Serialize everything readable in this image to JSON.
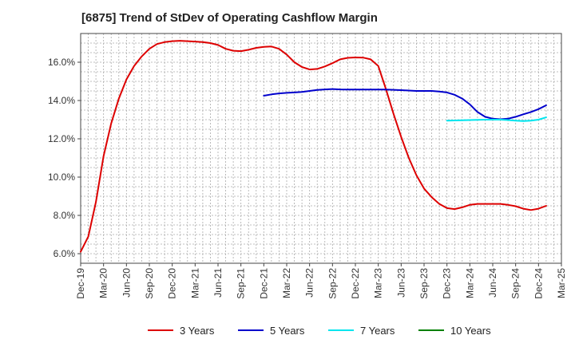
{
  "title": "[6875]  Trend of StDev of Operating Cashflow Margin",
  "chart_data": {
    "type": "line",
    "title": "[6875]  Trend of StDev of Operating Cashflow Margin",
    "xlabel": "",
    "ylabel": "",
    "x_tick_labels": [
      "Dec-19",
      "Mar-20",
      "Jun-20",
      "Sep-20",
      "Dec-20",
      "Mar-21",
      "Jun-21",
      "Sep-21",
      "Dec-21",
      "Mar-22",
      "Jun-22",
      "Sep-22",
      "Dec-22",
      "Mar-23",
      "Jun-23",
      "Sep-23",
      "Dec-23",
      "Mar-24",
      "Jun-24",
      "Sep-24",
      "Dec-24",
      "Mar-25"
    ],
    "y_tick_labels": [
      "6.0%",
      "8.0%",
      "10.0%",
      "12.0%",
      "14.0%",
      "16.0%"
    ],
    "y_ticks": [
      6,
      8,
      10,
      12,
      14,
      16
    ],
    "ylim": [
      5.5,
      17.5
    ],
    "x_range_months": [
      0,
      63
    ],
    "grid": true,
    "legend_position": "bottom",
    "series": [
      {
        "name": "3 Years",
        "color": "#dd0000",
        "x_months": [
          0,
          1,
          2,
          3,
          4,
          5,
          6,
          7,
          8,
          9,
          10,
          11,
          12,
          13,
          14,
          15,
          16,
          17,
          18,
          19,
          20,
          21,
          22,
          23,
          24,
          25,
          26,
          27,
          28,
          29,
          30,
          31,
          32,
          33,
          34,
          35,
          36,
          37,
          38,
          39,
          40,
          41,
          42,
          43,
          44,
          45,
          46,
          47,
          48,
          49,
          50,
          51,
          52,
          53,
          54,
          55,
          56,
          57,
          58,
          59,
          60,
          61,
          62,
          63
        ],
        "values": [
          6.1,
          6.9,
          8.7,
          11.1,
          12.8,
          14.1,
          15.1,
          15.8,
          16.3,
          16.7,
          16.95,
          17.05,
          17.1,
          17.12,
          17.1,
          17.08,
          17.05,
          17.0,
          16.9,
          16.7,
          16.6,
          16.58,
          16.65,
          16.75,
          16.8,
          16.82,
          16.7,
          16.4,
          16.0,
          15.75,
          15.62,
          15.65,
          15.78,
          15.95,
          16.15,
          16.23,
          16.25,
          16.24,
          16.15,
          15.8,
          14.6,
          13.3,
          12.1,
          11.0,
          10.1,
          9.4,
          8.95,
          8.6,
          8.38,
          8.33,
          8.42,
          8.55,
          8.6,
          8.6,
          8.6,
          8.6,
          8.55,
          8.48,
          8.35,
          8.28,
          8.35,
          8.5,
          null,
          null
        ]
      },
      {
        "name": "5 Years",
        "color": "#0000cc",
        "x_months": [
          24,
          25,
          26,
          27,
          28,
          29,
          30,
          31,
          32,
          33,
          34,
          35,
          36,
          37,
          38,
          39,
          40,
          41,
          42,
          43,
          44,
          45,
          46,
          47,
          48,
          49,
          50,
          51,
          52,
          53,
          54,
          55,
          56,
          57,
          58,
          59,
          60,
          61
        ],
        "values": [
          14.25,
          14.32,
          14.37,
          14.4,
          14.42,
          14.45,
          14.5,
          14.55,
          14.58,
          14.6,
          14.58,
          14.57,
          14.57,
          14.57,
          14.57,
          14.57,
          14.57,
          14.56,
          14.54,
          14.52,
          14.5,
          14.5,
          14.5,
          14.47,
          14.42,
          14.3,
          14.1,
          13.8,
          13.4,
          13.15,
          13.05,
          13.02,
          13.05,
          13.15,
          13.28,
          13.4,
          13.55,
          13.75
        ]
      },
      {
        "name": "7 Years",
        "color": "#00e5ee",
        "x_months": [
          48,
          49,
          50,
          51,
          52,
          53,
          54,
          55,
          56,
          57,
          58,
          59,
          60,
          61
        ],
        "values": [
          12.95,
          12.96,
          12.97,
          12.98,
          12.99,
          13.0,
          13.0,
          13.0,
          12.98,
          12.95,
          12.93,
          12.95,
          13.0,
          13.12
        ]
      },
      {
        "name": "10 Years",
        "color": "#008000",
        "x_months": [],
        "values": []
      }
    ]
  }
}
